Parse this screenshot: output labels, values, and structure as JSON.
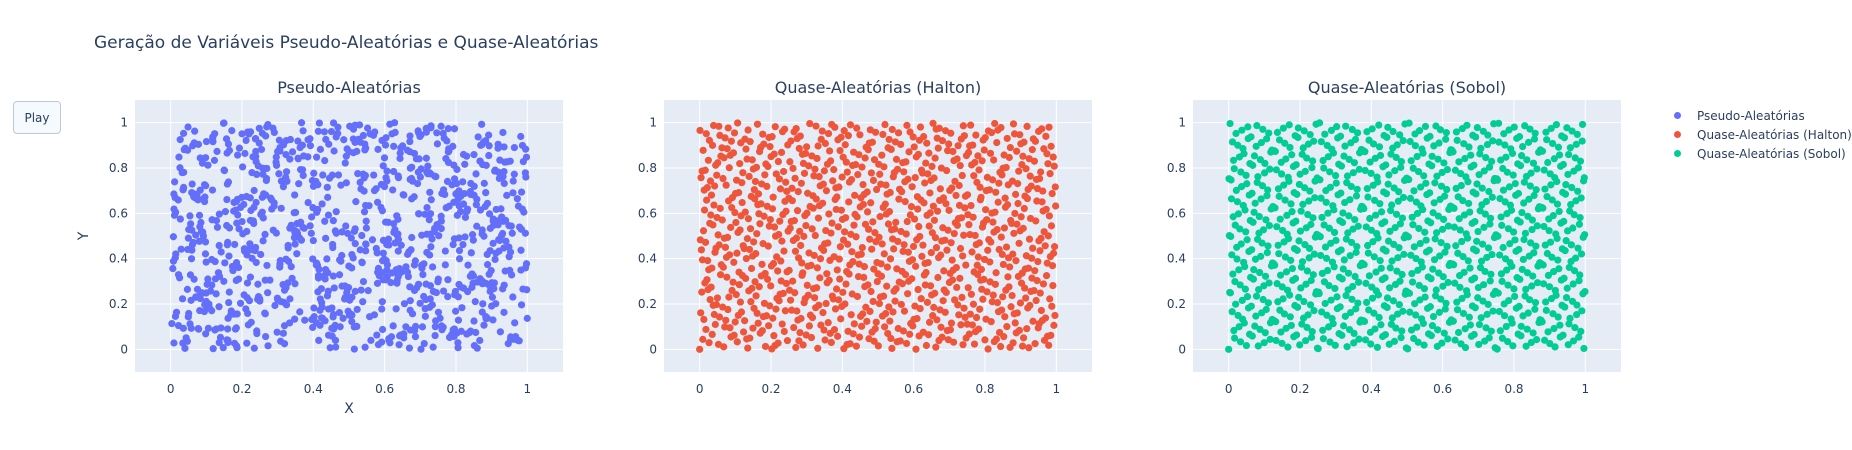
{
  "title": "Geração de Variáveis Pseudo-Aleatórias e Quase-Aleatórias",
  "controls": {
    "play_label": "Play"
  },
  "axes": {
    "xlabel": "X",
    "ylabel": "Y",
    "xlim": [
      -0.1,
      1.1
    ],
    "ylim": [
      -0.1,
      1.1
    ],
    "xticks": [
      "0",
      "0.2",
      "0.4",
      "0.6",
      "0.8",
      "1"
    ],
    "yticks": [
      "0",
      "0.2",
      "0.4",
      "0.6",
      "0.8",
      "1"
    ]
  },
  "legend": [
    {
      "label": "Pseudo-Aleatórias",
      "color": "#636efa"
    },
    {
      "label": "Quase-Aleatórias (Halton)",
      "color": "#ef553b"
    },
    {
      "label": "Quase-Aleatórias (Sobol)",
      "color": "#00cc96"
    }
  ],
  "chart_data": [
    {
      "type": "scatter",
      "title": "Pseudo-Aleatórias",
      "xlabel": "X",
      "ylabel": "Y",
      "xlim": [
        -0.1,
        1.1
      ],
      "ylim": [
        -0.1,
        1.1
      ],
      "grid": true,
      "series": [
        {
          "name": "Pseudo-Aleatórias",
          "color": "#636efa",
          "generator": "pseudo-random",
          "n": 1000
        }
      ]
    },
    {
      "type": "scatter",
      "title": "Quase-Aleatórias (Halton)",
      "xlabel": "",
      "ylabel": "",
      "xlim": [
        -0.1,
        1.1
      ],
      "ylim": [
        -0.1,
        1.1
      ],
      "grid": true,
      "series": [
        {
          "name": "Quase-Aleatórias (Halton)",
          "color": "#ef553b",
          "generator": "halton",
          "n": 1000
        }
      ]
    },
    {
      "type": "scatter",
      "title": "Quase-Aleatórias (Sobol)",
      "xlabel": "",
      "ylabel": "",
      "xlim": [
        -0.1,
        1.1
      ],
      "ylim": [
        -0.1,
        1.1
      ],
      "grid": true,
      "series": [
        {
          "name": "Quase-Aleatórias (Sobol)",
          "color": "#00cc96",
          "generator": "sobol",
          "n": 1024
        }
      ]
    }
  ]
}
